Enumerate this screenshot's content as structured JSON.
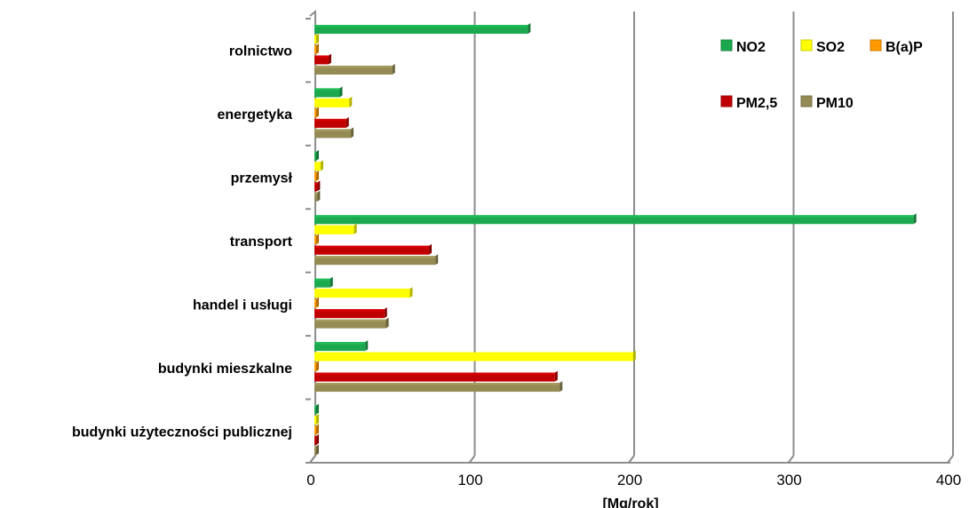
{
  "chart_data": {
    "type": "bar",
    "orientation": "horizontal",
    "categories": [
      "rolnictwo",
      "energetyka",
      "przemysł",
      "transport",
      "handel i usługi",
      "budynki mieszkalne",
      "budynki użyteczności publicznej"
    ],
    "series": [
      {
        "name": "NO2",
        "color": "#1ca84f",
        "values": [
          135,
          17,
          2,
          377,
          11,
          33,
          1
        ]
      },
      {
        "name": "SO2",
        "color": "#ffff00",
        "values": [
          0,
          23,
          5,
          26,
          61,
          201,
          1
        ]
      },
      {
        "name": "B(a)P",
        "color": "#ff9900",
        "values": [
          0,
          0,
          0,
          0,
          0,
          0,
          0
        ]
      },
      {
        "name": "PM2,5",
        "color": "#c00000",
        "values": [
          10,
          21,
          3,
          73,
          45,
          152,
          1
        ]
      },
      {
        "name": "PM10",
        "color": "#948a54",
        "values": [
          50,
          24,
          3,
          77,
          46,
          155,
          2
        ]
      }
    ],
    "xlabel": "[Mg/rok]",
    "ylabel": "",
    "xlim": [
      0,
      400
    ],
    "xticks": [
      0,
      100,
      200,
      300,
      400
    ],
    "grid": "vertical",
    "legend_position": "top-right"
  }
}
